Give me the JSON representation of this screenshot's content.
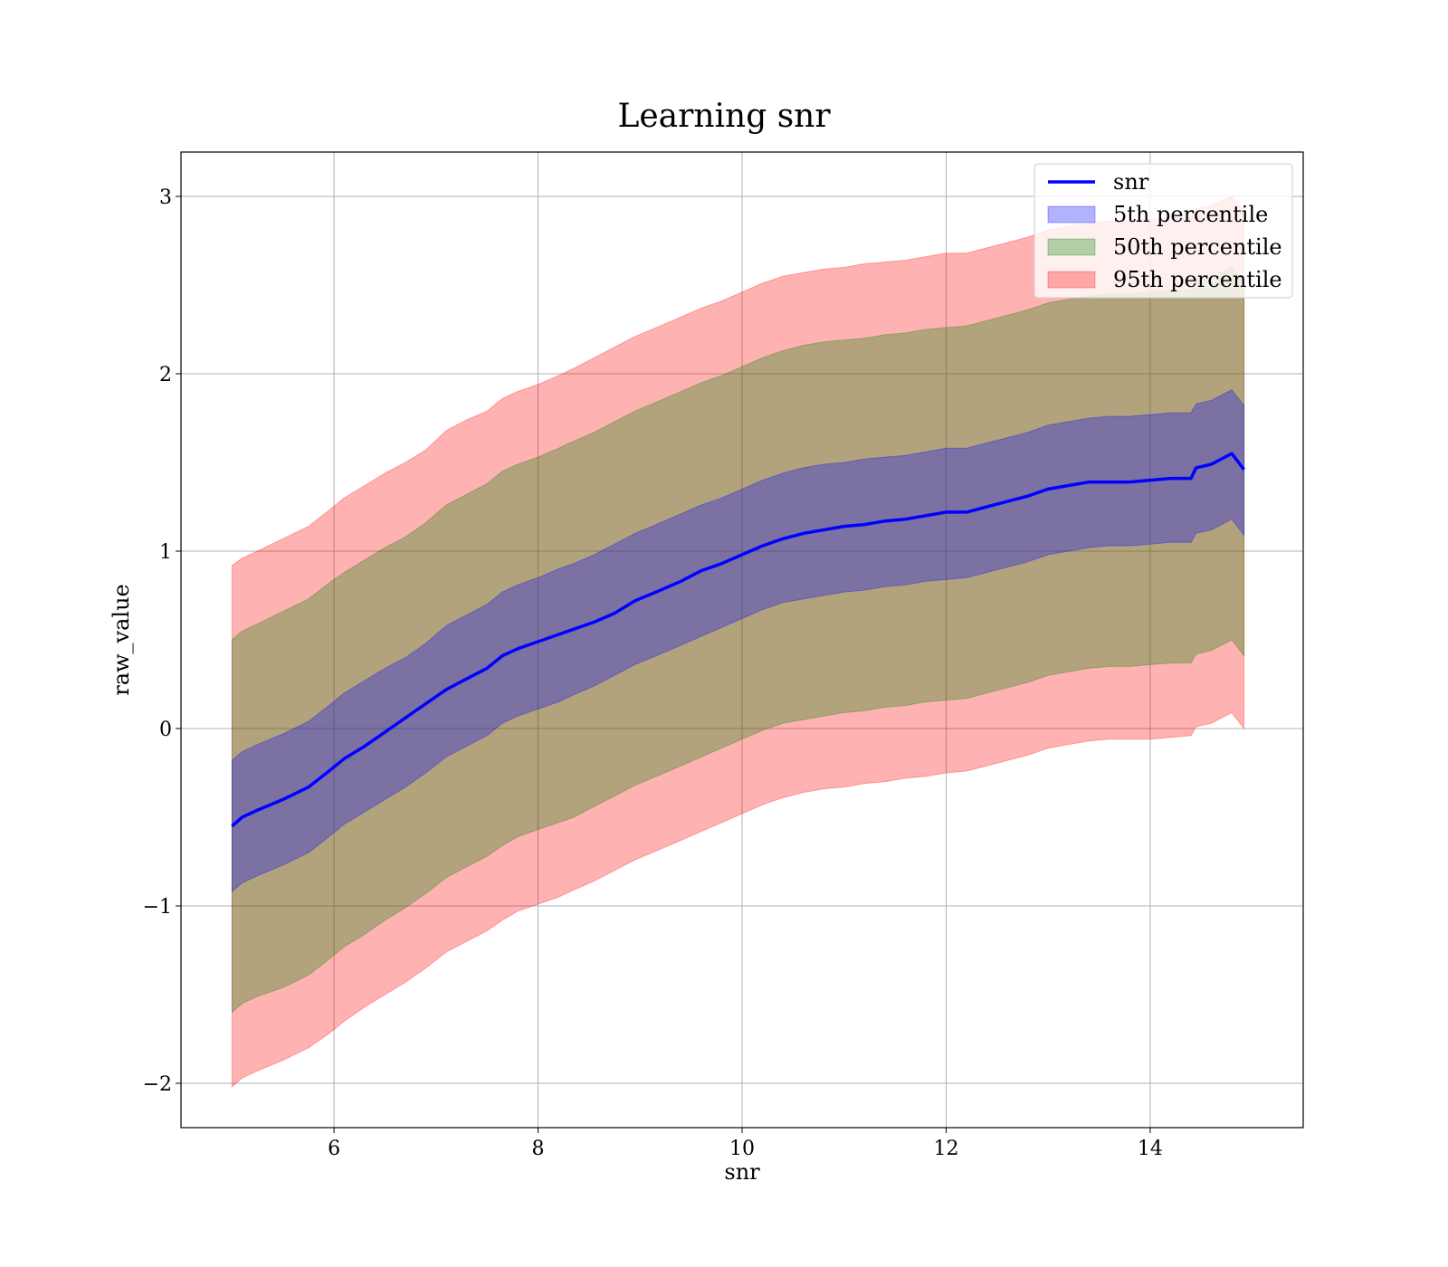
{
  "chart_data": {
    "type": "area",
    "title": "Learning snr",
    "xlabel": "snr",
    "ylabel": "raw_value",
    "xlim": [
      4.5,
      15.5
    ],
    "ylim": [
      -2.25,
      3.25
    ],
    "x_ticks": [
      6,
      8,
      10,
      12,
      14
    ],
    "y_ticks": [
      -2,
      -1,
      0,
      1,
      2,
      3
    ],
    "x_tick_labels": [
      "6",
      "8",
      "10",
      "12",
      "14"
    ],
    "y_tick_labels": [
      "−2",
      "−1",
      "0",
      "1",
      "2",
      "3"
    ],
    "grid": true,
    "legend_position": "upper right",
    "x": [
      5.0,
      5.1,
      5.25,
      5.5,
      5.75,
      5.95,
      6.1,
      6.3,
      6.5,
      6.7,
      6.9,
      7.1,
      7.3,
      7.5,
      7.65,
      7.8,
      8.0,
      8.2,
      8.35,
      8.55,
      8.75,
      8.95,
      9.2,
      9.4,
      9.6,
      9.8,
      10.0,
      10.2,
      10.4,
      10.6,
      10.8,
      11.0,
      11.2,
      11.4,
      11.6,
      11.8,
      12.0,
      12.2,
      12.4,
      12.6,
      12.8,
      13.0,
      13.2,
      13.4,
      13.6,
      13.8,
      14.0,
      14.2,
      14.4,
      14.45,
      14.6,
      14.8,
      14.92
    ],
    "series": [
      {
        "name": "snr",
        "color": "#0000ff",
        "values": [
          -0.55,
          -0.5,
          -0.46,
          -0.4,
          -0.33,
          -0.24,
          -0.17,
          -0.1,
          -0.02,
          0.06,
          0.14,
          0.22,
          0.28,
          0.34,
          0.41,
          0.45,
          0.49,
          0.53,
          0.56,
          0.6,
          0.65,
          0.72,
          0.78,
          0.83,
          0.89,
          0.93,
          0.98,
          1.03,
          1.07,
          1.1,
          1.12,
          1.14,
          1.15,
          1.17,
          1.18,
          1.2,
          1.22,
          1.22,
          1.25,
          1.28,
          1.31,
          1.35,
          1.37,
          1.39,
          1.39,
          1.39,
          1.4,
          1.41,
          1.41,
          1.47,
          1.49,
          1.55,
          1.46
        ]
      }
    ],
    "bands": [
      {
        "name": "95th percentile",
        "color": "#ff0000",
        "opacity": 0.3,
        "upper": [
          0.92,
          0.96,
          1.0,
          1.07,
          1.14,
          1.23,
          1.3,
          1.37,
          1.44,
          1.5,
          1.57,
          1.68,
          1.74,
          1.79,
          1.86,
          1.9,
          1.94,
          1.99,
          2.03,
          2.09,
          2.15,
          2.21,
          2.27,
          2.32,
          2.37,
          2.41,
          2.46,
          2.51,
          2.55,
          2.57,
          2.59,
          2.6,
          2.62,
          2.63,
          2.64,
          2.66,
          2.68,
          2.68,
          2.71,
          2.74,
          2.77,
          2.81,
          2.83,
          2.85,
          2.86,
          2.86,
          2.87,
          2.88,
          2.88,
          2.93,
          2.95,
          3.0,
          2.92
        ],
        "lower": [
          -2.02,
          -1.97,
          -1.93,
          -1.87,
          -1.8,
          -1.72,
          -1.65,
          -1.57,
          -1.5,
          -1.43,
          -1.35,
          -1.26,
          -1.2,
          -1.14,
          -1.08,
          -1.03,
          -0.99,
          -0.95,
          -0.91,
          -0.86,
          -0.8,
          -0.74,
          -0.68,
          -0.63,
          -0.58,
          -0.53,
          -0.48,
          -0.43,
          -0.39,
          -0.36,
          -0.34,
          -0.33,
          -0.31,
          -0.3,
          -0.28,
          -0.27,
          -0.25,
          -0.24,
          -0.21,
          -0.18,
          -0.15,
          -0.11,
          -0.09,
          -0.07,
          -0.06,
          -0.06,
          -0.06,
          -0.05,
          -0.04,
          0.01,
          0.03,
          0.09,
          0.0
        ]
      },
      {
        "name": "50th percentile",
        "color": "#008000",
        "opacity": 0.3,
        "upper": [
          0.5,
          0.55,
          0.59,
          0.66,
          0.73,
          0.82,
          0.88,
          0.95,
          1.02,
          1.08,
          1.16,
          1.26,
          1.32,
          1.38,
          1.45,
          1.49,
          1.53,
          1.58,
          1.62,
          1.67,
          1.73,
          1.79,
          1.85,
          1.9,
          1.95,
          1.99,
          2.04,
          2.09,
          2.13,
          2.16,
          2.18,
          2.19,
          2.2,
          2.22,
          2.23,
          2.25,
          2.26,
          2.27,
          2.3,
          2.33,
          2.36,
          2.4,
          2.42,
          2.44,
          2.45,
          2.45,
          2.46,
          2.47,
          2.47,
          2.52,
          2.54,
          2.6,
          2.51
        ],
        "lower": [
          -1.6,
          -1.55,
          -1.51,
          -1.46,
          -1.39,
          -1.3,
          -1.23,
          -1.16,
          -1.08,
          -1.01,
          -0.93,
          -0.84,
          -0.78,
          -0.72,
          -0.66,
          -0.61,
          -0.57,
          -0.53,
          -0.5,
          -0.44,
          -0.38,
          -0.32,
          -0.26,
          -0.21,
          -0.16,
          -0.11,
          -0.06,
          -0.01,
          0.03,
          0.05,
          0.07,
          0.09,
          0.1,
          0.12,
          0.13,
          0.15,
          0.16,
          0.17,
          0.2,
          0.23,
          0.26,
          0.3,
          0.32,
          0.34,
          0.35,
          0.35,
          0.36,
          0.37,
          0.37,
          0.42,
          0.44,
          0.5,
          0.41
        ]
      },
      {
        "name": "5th percentile",
        "color": "#0000ff",
        "opacity": 0.3,
        "upper": [
          -0.18,
          -0.13,
          -0.09,
          -0.03,
          0.04,
          0.13,
          0.2,
          0.27,
          0.34,
          0.4,
          0.48,
          0.58,
          0.64,
          0.7,
          0.77,
          0.81,
          0.85,
          0.9,
          0.93,
          0.98,
          1.04,
          1.1,
          1.16,
          1.21,
          1.26,
          1.3,
          1.35,
          1.4,
          1.44,
          1.47,
          1.49,
          1.5,
          1.52,
          1.53,
          1.54,
          1.56,
          1.58,
          1.58,
          1.61,
          1.64,
          1.67,
          1.71,
          1.73,
          1.75,
          1.76,
          1.76,
          1.77,
          1.78,
          1.78,
          1.83,
          1.85,
          1.91,
          1.82
        ],
        "lower": [
          -0.92,
          -0.87,
          -0.83,
          -0.77,
          -0.7,
          -0.61,
          -0.54,
          -0.47,
          -0.4,
          -0.33,
          -0.25,
          -0.16,
          -0.1,
          -0.04,
          0.03,
          0.07,
          0.11,
          0.15,
          0.19,
          0.24,
          0.3,
          0.36,
          0.42,
          0.47,
          0.52,
          0.57,
          0.62,
          0.67,
          0.71,
          0.73,
          0.75,
          0.77,
          0.78,
          0.8,
          0.81,
          0.83,
          0.84,
          0.85,
          0.88,
          0.91,
          0.94,
          0.98,
          1.0,
          1.02,
          1.03,
          1.03,
          1.04,
          1.05,
          1.05,
          1.1,
          1.12,
          1.18,
          1.09
        ]
      }
    ],
    "legend": [
      {
        "label": "snr",
        "kind": "line",
        "color": "#0000ff"
      },
      {
        "label": "5th percentile",
        "kind": "patch",
        "color": "#0000ff"
      },
      {
        "label": "50th percentile",
        "kind": "patch",
        "color": "#008000"
      },
      {
        "label": "95th percentile",
        "kind": "patch",
        "color": "#ff0000"
      }
    ]
  }
}
